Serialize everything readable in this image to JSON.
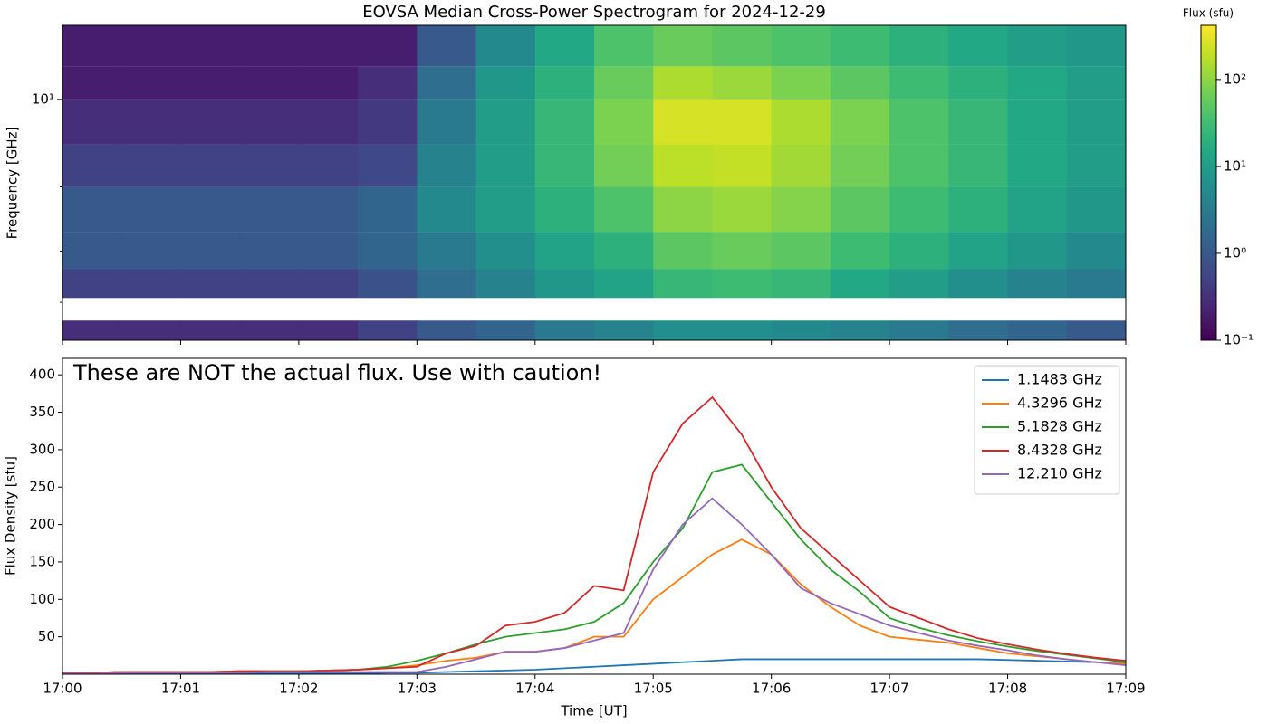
{
  "chart_data": [
    {
      "type": "heatmap",
      "title": "EOVSA Median Cross-Power Spectrogram for 2024-12-29",
      "y_label": "Frequency [GHz]",
      "colorbar_label": "Flux (sfu)",
      "cmap": "viridis",
      "ylog": true,
      "clog": true,
      "xlim": [
        0,
        9
      ],
      "xticks": [
        0,
        1,
        2,
        3,
        4,
        5,
        6,
        7,
        8,
        9
      ],
      "ylim": [
        1.48,
        18
      ],
      "yticks": [
        {
          "value": 10,
          "label": "10¹"
        }
      ],
      "yminor": [
        2,
        3,
        5
      ],
      "clim": [
        0.1,
        420
      ],
      "cticks": [
        {
          "value": 0.1,
          "label": "10⁻¹"
        },
        {
          "value": 1,
          "label": "10⁰"
        },
        {
          "value": 10,
          "label": "10¹"
        },
        {
          "value": 100,
          "label": "10²"
        }
      ],
      "x_bins": [
        0,
        0.5,
        1,
        1.5,
        2,
        2.5,
        3,
        3.5,
        4,
        4.5,
        5,
        5.5,
        6,
        6.5,
        7,
        7.5,
        8,
        8.5,
        9
      ],
      "y_bins": [
        1.48,
        1.73,
        2.07,
        2.6,
        3.5,
        5,
        7,
        10,
        13,
        18
      ],
      "z": [
        [
          0.3,
          0.3,
          0.3,
          0.3,
          0.3,
          0.5,
          1,
          1.5,
          3,
          4,
          6,
          6,
          5,
          4,
          3,
          2,
          1.5,
          1
        ],
        [
          null,
          null,
          null,
          null,
          null,
          null,
          null,
          null,
          null,
          null,
          null,
          null,
          null,
          null,
          null,
          null,
          null,
          null
        ],
        [
          0.5,
          0.5,
          0.5,
          0.5,
          0.5,
          0.8,
          2,
          4,
          8,
          12,
          25,
          30,
          25,
          15,
          10,
          6,
          4,
          3
        ],
        [
          1,
          1,
          1,
          1,
          1,
          1.5,
          3,
          6,
          12,
          20,
          50,
          60,
          50,
          30,
          20,
          12,
          8,
          5
        ],
        [
          1,
          1,
          1,
          1,
          1,
          1.5,
          5,
          10,
          20,
          40,
          100,
          120,
          90,
          50,
          30,
          20,
          12,
          8
        ],
        [
          0.5,
          0.5,
          0.5,
          0.5,
          0.5,
          0.6,
          4,
          10,
          25,
          70,
          180,
          200,
          130,
          70,
          40,
          25,
          15,
          10
        ],
        [
          0.3,
          0.3,
          0.3,
          0.3,
          0.3,
          0.4,
          3,
          10,
          25,
          80,
          250,
          250,
          150,
          80,
          40,
          25,
          15,
          10
        ],
        [
          0.2,
          0.2,
          0.2,
          0.2,
          0.2,
          0.3,
          2,
          8,
          20,
          60,
          150,
          120,
          80,
          50,
          30,
          20,
          15,
          10
        ],
        [
          0.2,
          0.2,
          0.2,
          0.2,
          0.2,
          0.2,
          1,
          5,
          15,
          40,
          60,
          50,
          40,
          30,
          20,
          15,
          10,
          8
        ]
      ]
    },
    {
      "type": "line",
      "x_label": "Time [UT]",
      "y_label": "Flux Density [sfu]",
      "annotation": "These are NOT the actual flux. Use with caution!",
      "legend": "upper right",
      "xlim": [
        0,
        9
      ],
      "xticks": [
        {
          "value": 0,
          "label": "17:00"
        },
        {
          "value": 1,
          "label": "17:01"
        },
        {
          "value": 2,
          "label": "17:02"
        },
        {
          "value": 3,
          "label": "17:03"
        },
        {
          "value": 4,
          "label": "17:04"
        },
        {
          "value": 5,
          "label": "17:05"
        },
        {
          "value": 6,
          "label": "17:06"
        },
        {
          "value": 7,
          "label": "17:07"
        },
        {
          "value": 8,
          "label": "17:08"
        },
        {
          "value": 9,
          "label": "17:09"
        }
      ],
      "ylim": [
        0,
        422
      ],
      "yticks": [
        50,
        100,
        150,
        200,
        250,
        300,
        350,
        400
      ],
      "x": [
        0,
        0.25,
        0.5,
        0.75,
        1,
        1.25,
        1.5,
        1.75,
        2,
        2.25,
        2.5,
        2.75,
        3,
        3.25,
        3.5,
        3.75,
        4,
        4.25,
        4.5,
        4.75,
        5,
        5.25,
        5.5,
        5.75,
        6,
        6.25,
        6.5,
        6.75,
        7,
        7.25,
        7.5,
        7.75,
        8,
        8.25,
        8.5,
        8.75,
        9
      ],
      "series": [
        {
          "name": "1.1483 GHz",
          "color": "#1f77b4",
          "values": [
            1,
            1,
            1,
            1,
            1,
            1,
            1,
            1,
            1,
            1,
            1,
            2,
            2,
            3,
            4,
            5,
            6,
            8,
            10,
            12,
            14,
            16,
            18,
            20,
            20,
            20,
            20,
            20,
            20,
            20,
            20,
            20,
            19,
            18,
            17,
            16,
            15
          ]
        },
        {
          "name": "4.3296 GHz",
          "color": "#ff7f0e",
          "values": [
            2,
            2,
            3,
            3,
            3,
            3,
            4,
            4,
            4,
            5,
            6,
            8,
            12,
            18,
            22,
            30,
            30,
            35,
            50,
            50,
            100,
            130,
            160,
            180,
            160,
            120,
            90,
            65,
            50,
            46,
            42,
            35,
            28,
            24,
            20,
            16,
            14
          ]
        },
        {
          "name": "5.1828 GHz",
          "color": "#2ca02c",
          "values": [
            2,
            2,
            3,
            3,
            3,
            3,
            4,
            4,
            4,
            5,
            6,
            10,
            18,
            28,
            40,
            50,
            55,
            60,
            70,
            95,
            150,
            195,
            270,
            280,
            230,
            180,
            140,
            110,
            75,
            62,
            52,
            44,
            37,
            31,
            26,
            21,
            16
          ]
        },
        {
          "name": "8.4328 GHz",
          "color": "#d62728",
          "values": [
            2,
            2,
            3,
            3,
            3,
            3,
            4,
            4,
            4,
            5,
            6,
            8,
            10,
            28,
            38,
            65,
            70,
            82,
            118,
            112,
            270,
            335,
            370,
            320,
            250,
            195,
            160,
            125,
            90,
            75,
            60,
            48,
            40,
            33,
            27,
            22,
            18
          ]
        },
        {
          "name": "12.210 GHz",
          "color": "#9467bd",
          "values": [
            1,
            1,
            2,
            2,
            2,
            2,
            2,
            3,
            3,
            3,
            3,
            3,
            3,
            10,
            20,
            30,
            30,
            35,
            45,
            55,
            140,
            200,
            235,
            200,
            160,
            115,
            95,
            80,
            65,
            55,
            45,
            38,
            32,
            25,
            20,
            16,
            12
          ]
        }
      ]
    }
  ]
}
